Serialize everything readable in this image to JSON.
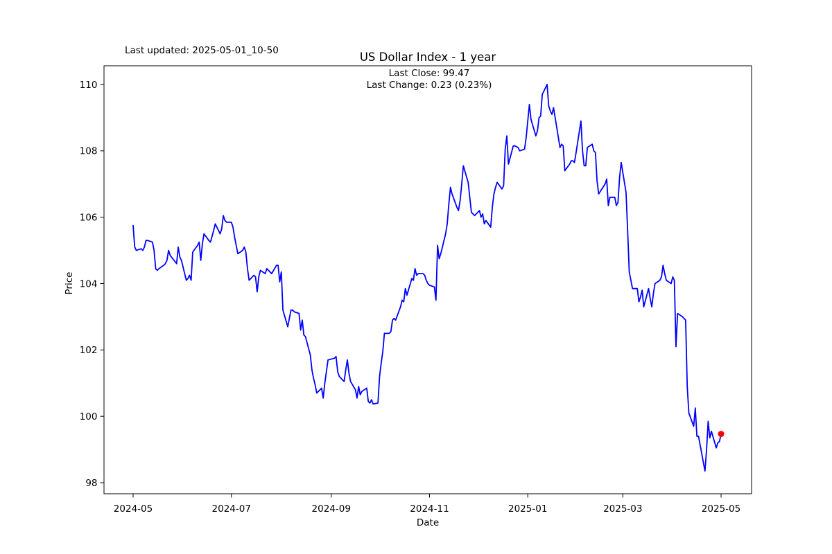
{
  "figure": {
    "last_updated": "Last updated: 2025-05-01_10-50",
    "title": "US Dollar Index - 1 year",
    "annotation_close": "Last Close: 99.47",
    "annotation_change": "Last Change: 0.23 (0.23%)",
    "xlabel": "Date",
    "ylabel": "Price"
  },
  "chart_data": {
    "type": "line",
    "title": "US Dollar Index - 1 year",
    "xlabel": "Date",
    "ylabel": "Price",
    "grid": false,
    "legend": null,
    "ylim": [
      97.7,
      110.6
    ],
    "xlim": [
      "2024-04-13",
      "2025-05-20"
    ],
    "y_ticks": [
      98,
      100,
      102,
      104,
      106,
      108,
      110
    ],
    "x_ticks": [
      {
        "label": "2024-05",
        "date": "2024-05-01"
      },
      {
        "label": "2024-07",
        "date": "2024-07-01"
      },
      {
        "label": "2024-09",
        "date": "2024-09-01"
      },
      {
        "label": "2024-11",
        "date": "2024-11-01"
      },
      {
        "label": "2025-01",
        "date": "2025-01-01"
      },
      {
        "label": "2025-03",
        "date": "2025-03-01"
      },
      {
        "label": "2025-05",
        "date": "2025-05-01"
      }
    ],
    "line_color": "#0000ff",
    "line_width": 1.8,
    "marker": {
      "date": "2025-05-01",
      "value": 99.47,
      "color": "#ff0000",
      "radius": 4.5
    },
    "last_close": 99.47,
    "last_change": 0.23,
    "last_change_pct": 0.23,
    "series": [
      {
        "name": "US Dollar Index",
        "dates": [
          "2024-05-01",
          "2024-05-02",
          "2024-05-03",
          "2024-05-06",
          "2024-05-07",
          "2024-05-08",
          "2024-05-09",
          "2024-05-10",
          "2024-05-13",
          "2024-05-14",
          "2024-05-15",
          "2024-05-16",
          "2024-05-17",
          "2024-05-20",
          "2024-05-21",
          "2024-05-22",
          "2024-05-23",
          "2024-05-24",
          "2024-05-28",
          "2024-05-29",
          "2024-05-30",
          "2024-05-31",
          "2024-06-03",
          "2024-06-04",
          "2024-06-05",
          "2024-06-06",
          "2024-06-07",
          "2024-06-10",
          "2024-06-11",
          "2024-06-12",
          "2024-06-13",
          "2024-06-14",
          "2024-06-17",
          "2024-06-18",
          "2024-06-20",
          "2024-06-21",
          "2024-06-24",
          "2024-06-25",
          "2024-06-26",
          "2024-06-27",
          "2024-06-28",
          "2024-07-01",
          "2024-07-02",
          "2024-07-03",
          "2024-07-05",
          "2024-07-08",
          "2024-07-09",
          "2024-07-10",
          "2024-07-11",
          "2024-07-12",
          "2024-07-15",
          "2024-07-16",
          "2024-07-17",
          "2024-07-18",
          "2024-07-19",
          "2024-07-22",
          "2024-07-23",
          "2024-07-24",
          "2024-07-25",
          "2024-07-26",
          "2024-07-29",
          "2024-07-30",
          "2024-07-31",
          "2024-08-01",
          "2024-08-02",
          "2024-08-05",
          "2024-08-06",
          "2024-08-07",
          "2024-08-08",
          "2024-08-09",
          "2024-08-12",
          "2024-08-13",
          "2024-08-14",
          "2024-08-15",
          "2024-08-16",
          "2024-08-19",
          "2024-08-20",
          "2024-08-21",
          "2024-08-22",
          "2024-08-23",
          "2024-08-26",
          "2024-08-27",
          "2024-08-28",
          "2024-08-29",
          "2024-08-30",
          "2024-09-03",
          "2024-09-04",
          "2024-09-05",
          "2024-09-06",
          "2024-09-09",
          "2024-09-10",
          "2024-09-11",
          "2024-09-12",
          "2024-09-13",
          "2024-09-16",
          "2024-09-17",
          "2024-09-18",
          "2024-09-19",
          "2024-09-20",
          "2024-09-23",
          "2024-09-24",
          "2024-09-25",
          "2024-09-26",
          "2024-09-27",
          "2024-09-30",
          "2024-10-01",
          "2024-10-02",
          "2024-10-03",
          "2024-10-04",
          "2024-10-07",
          "2024-10-08",
          "2024-10-09",
          "2024-10-10",
          "2024-10-11",
          "2024-10-14",
          "2024-10-15",
          "2024-10-16",
          "2024-10-17",
          "2024-10-18",
          "2024-10-21",
          "2024-10-22",
          "2024-10-23",
          "2024-10-24",
          "2024-10-25",
          "2024-10-28",
          "2024-10-29",
          "2024-10-30",
          "2024-10-31",
          "2024-11-01",
          "2024-11-04",
          "2024-11-05",
          "2024-11-06",
          "2024-11-07",
          "2024-11-08",
          "2024-11-11",
          "2024-11-12",
          "2024-11-13",
          "2024-11-14",
          "2024-11-15",
          "2024-11-18",
          "2024-11-19",
          "2024-11-20",
          "2024-11-21",
          "2024-11-22",
          "2024-11-25",
          "2024-11-26",
          "2024-11-27",
          "2024-11-29",
          "2024-12-02",
          "2024-12-03",
          "2024-12-04",
          "2024-12-05",
          "2024-12-06",
          "2024-12-09",
          "2024-12-10",
          "2024-12-11",
          "2024-12-12",
          "2024-12-13",
          "2024-12-16",
          "2024-12-17",
          "2024-12-18",
          "2024-12-19",
          "2024-12-20",
          "2024-12-23",
          "2024-12-24",
          "2024-12-26",
          "2024-12-27",
          "2024-12-30",
          "2024-12-31",
          "2025-01-02",
          "2025-01-03",
          "2025-01-06",
          "2025-01-07",
          "2025-01-08",
          "2025-01-09",
          "2025-01-10",
          "2025-01-13",
          "2025-01-14",
          "2025-01-15",
          "2025-01-16",
          "2025-01-17",
          "2025-01-21",
          "2025-01-22",
          "2025-01-23",
          "2025-01-24",
          "2025-01-27",
          "2025-01-28",
          "2025-01-29",
          "2025-01-30",
          "2025-01-31",
          "2025-02-03",
          "2025-02-04",
          "2025-02-05",
          "2025-02-06",
          "2025-02-07",
          "2025-02-10",
          "2025-02-11",
          "2025-02-12",
          "2025-02-13",
          "2025-02-14",
          "2025-02-18",
          "2025-02-19",
          "2025-02-20",
          "2025-02-21",
          "2025-02-24",
          "2025-02-25",
          "2025-02-26",
          "2025-02-27",
          "2025-02-28",
          "2025-03-03",
          "2025-03-04",
          "2025-03-05",
          "2025-03-06",
          "2025-03-07",
          "2025-03-10",
          "2025-03-11",
          "2025-03-12",
          "2025-03-13",
          "2025-03-14",
          "2025-03-17",
          "2025-03-18",
          "2025-03-19",
          "2025-03-20",
          "2025-03-21",
          "2025-03-24",
          "2025-03-25",
          "2025-03-26",
          "2025-03-27",
          "2025-03-28",
          "2025-03-31",
          "2025-04-01",
          "2025-04-02",
          "2025-04-03",
          "2025-04-04",
          "2025-04-07",
          "2025-04-08",
          "2025-04-09",
          "2025-04-10",
          "2025-04-11",
          "2025-04-14",
          "2025-04-15",
          "2025-04-16",
          "2025-04-17",
          "2025-04-21",
          "2025-04-22",
          "2025-04-23",
          "2025-04-24",
          "2025-04-25",
          "2025-04-28",
          "2025-04-29",
          "2025-04-30",
          "2025-05-01"
        ],
        "values": [
          105.75,
          105.1,
          105.0,
          105.05,
          105.0,
          105.1,
          105.3,
          105.3,
          105.25,
          105.0,
          104.45,
          104.4,
          104.45,
          104.55,
          104.6,
          104.7,
          105.0,
          104.85,
          104.6,
          105.1,
          104.8,
          104.7,
          104.1,
          104.15,
          104.25,
          104.1,
          104.95,
          105.15,
          105.25,
          104.7,
          105.2,
          105.5,
          105.3,
          105.25,
          105.6,
          105.8,
          105.5,
          105.65,
          106.05,
          105.9,
          105.85,
          105.85,
          105.7,
          105.4,
          104.9,
          105.0,
          105.1,
          104.95,
          104.45,
          104.1,
          104.25,
          104.2,
          103.75,
          104.2,
          104.4,
          104.3,
          104.45,
          104.4,
          104.35,
          104.3,
          104.55,
          104.55,
          104.05,
          104.35,
          103.2,
          102.7,
          102.95,
          103.2,
          103.2,
          103.15,
          103.1,
          102.6,
          102.9,
          102.45,
          102.4,
          101.85,
          101.4,
          101.15,
          100.95,
          100.7,
          100.85,
          100.55,
          101.0,
          101.35,
          101.7,
          101.75,
          101.8,
          101.35,
          101.2,
          101.05,
          101.4,
          101.7,
          101.3,
          101.05,
          100.8,
          100.55,
          100.9,
          100.65,
          100.75,
          100.85,
          100.45,
          100.4,
          100.5,
          100.37,
          100.4,
          101.2,
          101.6,
          101.95,
          102.5,
          102.5,
          102.55,
          102.9,
          102.95,
          102.9,
          103.3,
          103.5,
          103.45,
          103.85,
          103.65,
          104.15,
          104.1,
          104.45,
          104.25,
          104.3,
          104.3,
          104.25,
          104.1,
          104.0,
          103.95,
          103.9,
          103.5,
          105.15,
          104.75,
          104.9,
          105.5,
          105.8,
          106.4,
          106.9,
          106.7,
          106.3,
          106.2,
          106.5,
          107.0,
          107.55,
          107.05,
          106.6,
          106.15,
          106.05,
          106.2,
          106.0,
          106.1,
          105.8,
          105.9,
          105.7,
          106.3,
          106.7,
          106.9,
          107.05,
          106.85,
          106.95,
          108.05,
          108.45,
          107.6,
          108.15,
          108.15,
          108.1,
          108.0,
          108.05,
          108.4,
          109.4,
          108.95,
          108.45,
          108.6,
          109.0,
          109.05,
          109.7,
          110.0,
          109.35,
          109.2,
          109.1,
          109.3,
          108.1,
          108.2,
          108.15,
          107.4,
          107.6,
          107.7,
          107.7,
          107.65,
          107.95,
          108.9,
          108.0,
          107.55,
          107.55,
          108.1,
          108.2,
          108.0,
          107.95,
          107.1,
          106.7,
          107.0,
          107.15,
          106.35,
          106.6,
          106.6,
          106.35,
          106.45,
          107.2,
          107.65,
          106.75,
          105.6,
          104.35,
          104.1,
          103.85,
          103.85,
          103.45,
          103.6,
          103.8,
          103.3,
          103.85,
          103.55,
          103.3,
          103.7,
          104.0,
          104.1,
          104.2,
          104.55,
          104.3,
          104.1,
          104.0,
          104.2,
          104.1,
          102.1,
          103.1,
          103.0,
          102.95,
          102.9,
          100.9,
          100.1,
          99.7,
          100.25,
          99.4,
          99.4,
          98.35,
          99.0,
          99.85,
          99.35,
          99.55,
          99.05,
          99.2,
          99.24,
          99.47
        ]
      }
    ]
  }
}
